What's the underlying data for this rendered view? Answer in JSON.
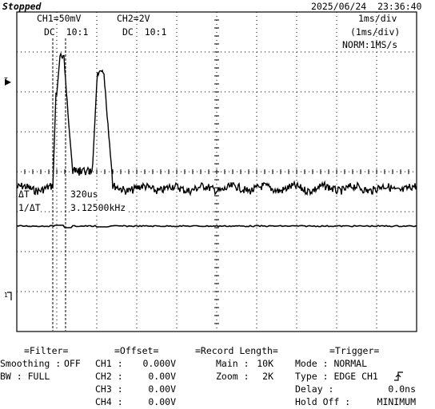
{
  "header": {
    "status": "Stopped",
    "trigger_marker": "T",
    "datetime": "2025/06/24  23:36:40",
    "ch1_scale": "CH1=50mV",
    "ch2_scale": "CH2=2V",
    "ch1_coupling": "DC  10:1",
    "ch2_coupling": "DC  10:1",
    "timebase": "1ms/div",
    "timebase_secondary": "(1ms/div)",
    "acq_mode": "NORM:1MS/s"
  },
  "markers": {
    "trigger_level": "T",
    "ch1_ground": "1"
  },
  "cursor": {
    "delta_label": "ΔT",
    "delta_value": "320us",
    "inv_label": "1/ΔT",
    "inv_value": "3.12500kHz"
  },
  "filter": {
    "title": "=Filter=",
    "rows": [
      {
        "label": "Smoothing :",
        "value": "OFF"
      },
      {
        "label": "BW : FULL",
        "value": ""
      }
    ]
  },
  "offset": {
    "title": "=Offset=",
    "rows": [
      {
        "label": "CH1 :",
        "value": "0.000V"
      },
      {
        "label": "CH2 :",
        "value": "0.00V"
      },
      {
        "label": "CH3 :",
        "value": "0.00V"
      },
      {
        "label": "CH4 :",
        "value": "0.00V"
      }
    ]
  },
  "record": {
    "title": "=Record Length=",
    "rows": [
      {
        "label": "Main :",
        "value": "10K"
      },
      {
        "label": "Zoom :",
        "value": "2K"
      }
    ]
  },
  "trigger": {
    "title": "=Trigger=",
    "rows": [
      {
        "label": "Mode : NORMAL",
        "value": ""
      },
      {
        "label": "Type : EDGE CH1",
        "value": ""
      },
      {
        "label": "Delay :",
        "value": "0.0ns"
      },
      {
        "label": "Hold Off :",
        "value": "MINIMUM"
      }
    ]
  }
}
